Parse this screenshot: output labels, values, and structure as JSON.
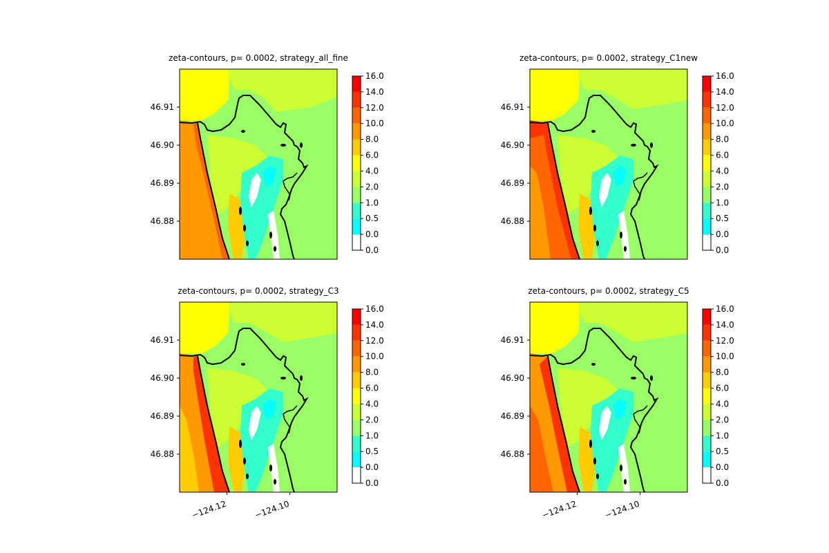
{
  "chart_data": {
    "type": "contour",
    "levels": [
      0.0,
      0.0,
      0.5,
      1.0,
      2.0,
      4.0,
      6.0,
      8.0,
      10.0,
      12.0,
      14.0,
      16.0
    ],
    "colorbar_ticks": [
      "0.0",
      "0.0",
      "0.5",
      "1.0",
      "2.0",
      "4.0",
      "6.0",
      "8.0",
      "10.0",
      "12.0",
      "14.0",
      "16.0"
    ],
    "colors": [
      "#ffffff",
      "#00ffff",
      "#33ffcc",
      "#99ff66",
      "#ccff33",
      "#ffff00",
      "#ffcc00",
      "#ff9900",
      "#ff6600",
      "#ff3300",
      "#ff0000"
    ],
    "ylim": [
      46.87,
      46.92
    ],
    "xlim": [
      -124.135,
      -124.085
    ],
    "ytick_values": [
      46.88,
      46.89,
      46.9,
      46.91
    ],
    "ytick_labels": [
      "46.88",
      "46.89",
      "46.90",
      "46.91"
    ],
    "xtick_values": [
      -124.12,
      -124.1
    ],
    "xtick_labels": [
      "−124.12",
      "−124.10"
    ],
    "panels": [
      {
        "title": "zeta-contours, p= 0.0002, strategy_all_fine",
        "show_xticks": false
      },
      {
        "title": "zeta-contours, p= 0.0002, strategy_C1new",
        "show_xticks": false
      },
      {
        "title": "zeta-contours, p= 0.0002, strategy_C3",
        "show_xticks": true
      },
      {
        "title": "zeta-contours, p= 0.0002, strategy_C5",
        "show_xticks": true
      }
    ]
  }
}
